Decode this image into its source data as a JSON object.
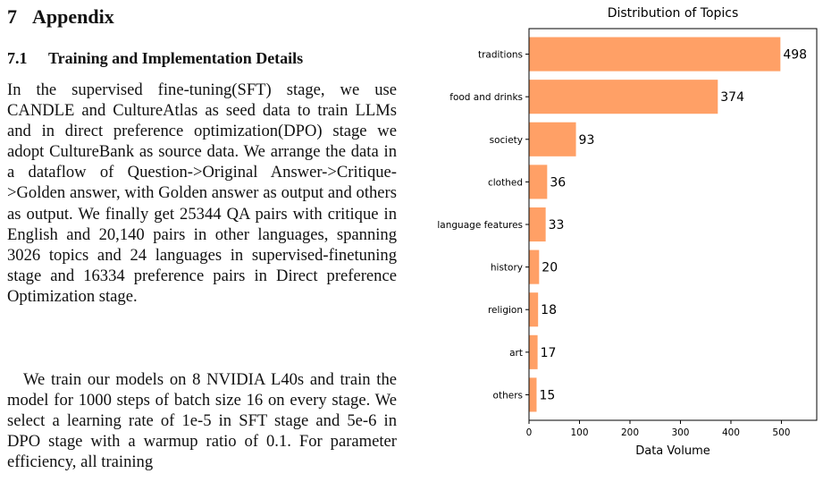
{
  "paper": {
    "section_number": "7",
    "section_title": "Appendix",
    "subsection_number": "7.1",
    "subsection_title": "Training and Implementation Details",
    "paragraph_1": "In the supervised fine-tuning(SFT) stage, we use CANDLE and CultureAtlas as seed data to train LLMs and in direct preference optimization(DPO) stage we adopt CultureBank as source data. We arrange the data in a dataflow of Question->Original Answer->Critique->Golden answer, with Golden answer as output and others as output. We finally get 25344 QA pairs with critique in English and 20,140 pairs in other languages, spanning 3026 topics and 24 languages in supervised-finetuning stage and 16334 preference pairs in Direct preference Optimization stage.",
    "paragraph_2": "We train our models on 8 NVIDIA L40s and train the model for 1000 steps of batch size 16 on every stage. We select a learning rate of 1e-5 in SFT stage and 5e-6 in DPO stage with a warmup ratio of 0.1. For parameter efficiency, all training"
  },
  "chart_data": {
    "type": "bar",
    "orientation": "horizontal",
    "title": "Distribution of Topics",
    "xlabel": "Data Volume",
    "ylabel": "",
    "categories": [
      "traditions",
      "food and drinks",
      "society",
      "clothed",
      "language features",
      "history",
      "religion",
      "art",
      "others"
    ],
    "values": [
      498,
      374,
      93,
      36,
      33,
      20,
      18,
      17,
      15
    ],
    "value_labels": [
      "498",
      "374",
      "93",
      "36",
      "33",
      "20",
      "18",
      "17",
      "15"
    ],
    "xlim": [
      0,
      570
    ],
    "xticks": [
      0,
      100,
      200,
      300,
      400,
      500
    ],
    "bar_color": "#FFA066",
    "grid": false,
    "legend": "none"
  }
}
